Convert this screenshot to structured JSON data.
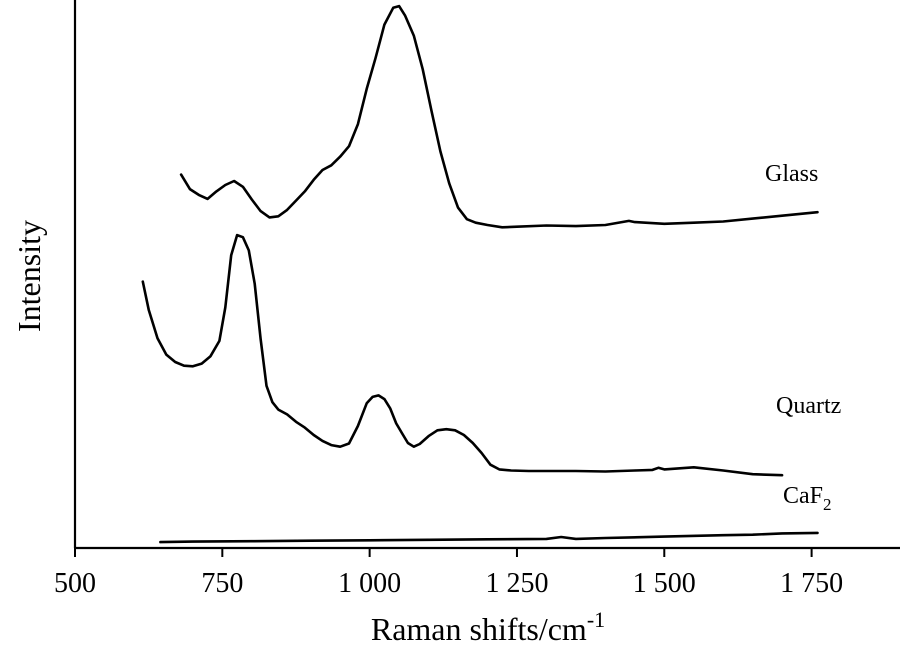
{
  "chart_data": {
    "type": "line",
    "title": "",
    "xlabel": "Raman shifts/cm",
    "xlabel_sup": "-1",
    "ylabel": "Intensity",
    "xlim": [
      500,
      1900
    ],
    "ylim": [
      0,
      100
    ],
    "x_ticks": [
      500,
      750,
      1000,
      1250,
      1500,
      1750
    ],
    "x_tick_labels": [
      "500",
      "750",
      "1 000",
      "1 250",
      "1 500",
      "1 750"
    ],
    "y_ticks_visible": false,
    "grid": false,
    "legend": "none",
    "series": [
      {
        "name": "Glass",
        "name_sub": "",
        "x": [
          680,
          695,
          710,
          725,
          740,
          755,
          770,
          785,
          800,
          815,
          830,
          845,
          860,
          875,
          890,
          905,
          920,
          935,
          950,
          965,
          980,
          995,
          1010,
          1025,
          1040,
          1050,
          1060,
          1075,
          1090,
          1105,
          1120,
          1135,
          1150,
          1165,
          1180,
          1200,
          1225,
          1250,
          1300,
          1350,
          1400,
          1440,
          1450,
          1500,
          1550,
          1600,
          1650,
          1700,
          1760
        ],
        "values": [
          69.5,
          67,
          66,
          65.3,
          66.6,
          67.7,
          68.4,
          67.4,
          65.2,
          63.2,
          62.1,
          62.3,
          63.4,
          65,
          66.6,
          68.6,
          70.3,
          71.1,
          72.6,
          74.4,
          78.2,
          84.3,
          89.6,
          95.4,
          98.3,
          98.6,
          97,
          93.5,
          87.7,
          80.5,
          73.5,
          68,
          63.8,
          61.8,
          61.2,
          60.8,
          60.4,
          60.5,
          60.7,
          60.6,
          60.8,
          61.5,
          61.3,
          61,
          61.2,
          61.4,
          61.9,
          62.4,
          63
        ]
      },
      {
        "name": "Quartz",
        "name_sub": "",
        "x": [
          615,
          625,
          640,
          655,
          670,
          685,
          700,
          715,
          730,
          745,
          755,
          765,
          775,
          785,
          795,
          805,
          815,
          825,
          835,
          845,
          860,
          875,
          890,
          905,
          920,
          935,
          950,
          965,
          980,
          995,
          1005,
          1015,
          1025,
          1035,
          1045,
          1055,
          1065,
          1075,
          1085,
          1100,
          1115,
          1130,
          1145,
          1160,
          1175,
          1190,
          1205,
          1220,
          1240,
          1270,
          1300,
          1350,
          1400,
          1450,
          1480,
          1490,
          1500,
          1550,
          1600,
          1650,
          1700
        ],
        "values": [
          51.3,
          46,
          40.6,
          37.5,
          36.1,
          35.4,
          35.3,
          35.8,
          37.2,
          40.1,
          46.4,
          56.3,
          60.1,
          59.7,
          57.2,
          50.9,
          40.5,
          31.6,
          28.5,
          27.1,
          26.2,
          24.8,
          23.7,
          22.3,
          21.2,
          20.4,
          20.1,
          20.7,
          24,
          28.3,
          29.5,
          29.8,
          29.1,
          27.3,
          24.5,
          22.6,
          20.8,
          20.1,
          20.6,
          22.1,
          23.2,
          23.4,
          23.2,
          22.3,
          20.8,
          18.9,
          16.7,
          15.8,
          15.6,
          15.5,
          15.5,
          15.5,
          15.4,
          15.6,
          15.7,
          16.1,
          15.8,
          16.2,
          15.6,
          14.9,
          14.7
        ]
      },
      {
        "name": "CaF",
        "name_sub": "2",
        "x": [
          645,
          700,
          800,
          900,
          1000,
          1100,
          1200,
          1300,
          1325,
          1350,
          1400,
          1500,
          1600,
          1650,
          1700,
          1760
        ],
        "values": [
          1.5,
          1.6,
          1.7,
          1.8,
          1.9,
          2,
          2.1,
          2.2,
          2.6,
          2.2,
          2.4,
          2.7,
          3,
          3.1,
          3.4,
          3.5
        ]
      }
    ]
  }
}
